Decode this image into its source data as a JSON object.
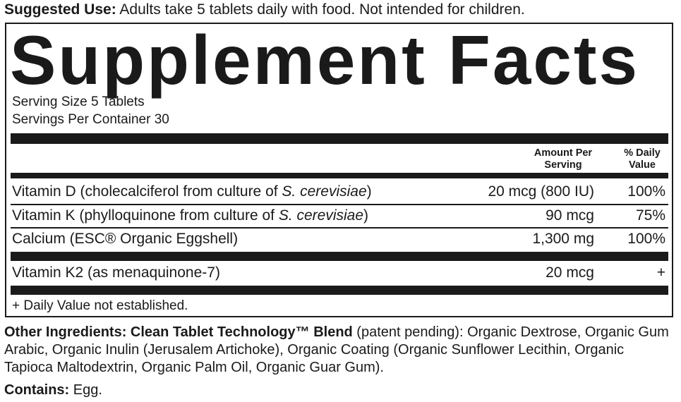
{
  "suggested_use": {
    "label": "Suggested Use:",
    "text": " Adults take 5 tablets daily with food. Not intended for children."
  },
  "title": "Supplement Facts",
  "serving_size": "Serving Size 5 Tablets",
  "servings_per_container": "Servings Per Container 30",
  "headers": {
    "amount_line1": "Amount Per",
    "amount_line2": "Serving",
    "dv_line1": "% Daily",
    "dv_line2": "Value"
  },
  "rows": [
    {
      "name": "Vitamin D (cholecalciferol from culture of ",
      "italic": "S. cerevisiae",
      "close": ")",
      "amount": "20 mcg (800 IU)",
      "dv": "100%"
    },
    {
      "name": "Vitamin K (phylloquinone from culture of ",
      "italic": "S. cerevisiae",
      "close": ")",
      "amount": "90 mcg",
      "dv": "75%"
    },
    {
      "name": "Calcium (ESC® Organic Eggshell)",
      "amount": "1,300 mg",
      "dv": "100%"
    },
    {
      "name": "Vitamin K2 (as menaquinone-7)",
      "amount": "20 mcg",
      "dv": "+"
    }
  ],
  "footnote": "+ Daily Value not established.",
  "other_ingredients": {
    "label": "Other Ingredients: Clean Tablet Technology™ Blend",
    "text": " (patent pending): Organic Dextrose, Organic Gum Arabic, Organic Inulin (Jerusalem Artichoke), Organic Coating (Organic Sunflower Lecithin, Organic Tapioca Maltodextrin, Organic Palm Oil, Organic Guar Gum)."
  },
  "contains": {
    "label": "Contains:",
    "text": " Egg."
  }
}
